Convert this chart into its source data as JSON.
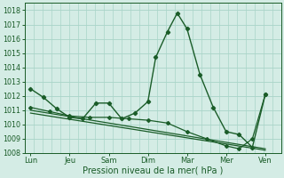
{
  "bg_color": "#d4ece5",
  "grid_color": "#a8d4c8",
  "line_color": "#1a5c28",
  "title": "Pression niveau de la mer( hPa )",
  "ylim": [
    1008,
    1018.5
  ],
  "yticks": [
    1008,
    1009,
    1010,
    1011,
    1012,
    1013,
    1014,
    1015,
    1016,
    1017,
    1018
  ],
  "xtick_labels": [
    "Lun",
    "Jeu",
    "Sam",
    "Dim",
    "Mar",
    "Mer",
    "Ven"
  ],
  "xtick_positions": [
    0,
    1,
    2,
    3,
    4,
    5,
    6
  ],
  "xlim": [
    -0.15,
    6.4
  ],
  "series1_x": [
    0.0,
    0.33,
    0.67,
    1.0,
    1.33,
    1.67,
    2.0,
    2.33,
    2.67,
    3.0,
    3.2,
    3.5,
    3.75,
    4.0,
    4.33,
    4.67,
    5.0,
    5.33,
    5.67,
    6.0
  ],
  "series1_y": [
    1012.5,
    1011.9,
    1011.1,
    1010.5,
    1010.4,
    1011.5,
    1011.5,
    1010.4,
    1010.8,
    1011.6,
    1014.7,
    1016.5,
    1017.8,
    1016.7,
    1013.5,
    1011.2,
    1009.5,
    1009.3,
    1008.4,
    1012.1
  ],
  "series2_x": [
    0.0,
    6.0
  ],
  "series2_y": [
    1011.0,
    1008.3
  ],
  "series3_x": [
    0.0,
    6.0
  ],
  "series3_y": [
    1010.8,
    1008.2
  ],
  "series4_x": [
    0.0,
    0.5,
    1.0,
    1.5,
    2.0,
    2.5,
    3.0,
    3.5,
    4.0,
    4.5,
    5.0,
    5.33,
    5.67,
    6.0
  ],
  "series4_y": [
    1011.2,
    1010.9,
    1010.6,
    1010.5,
    1010.5,
    1010.4,
    1010.3,
    1010.1,
    1009.5,
    1009.0,
    1008.5,
    1008.3,
    1009.0,
    1012.1
  ],
  "n_vertical_grid": 30
}
